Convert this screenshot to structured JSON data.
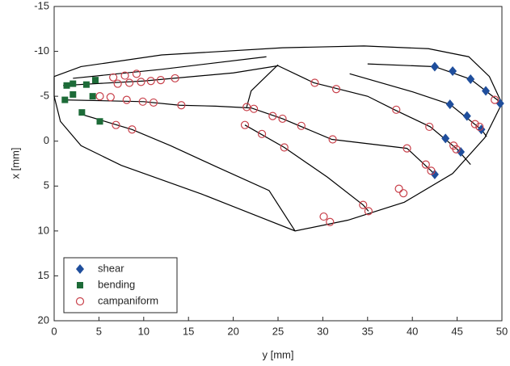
{
  "chart_data": {
    "type": "scatter",
    "xlabel": "y [mm]",
    "ylabel": "x [mm]",
    "xlim": [
      0,
      50
    ],
    "xticks": [
      0,
      5,
      10,
      15,
      20,
      25,
      30,
      35,
      40,
      45,
      50
    ],
    "ylim": [
      -15,
      20
    ],
    "yticks": [
      -15,
      -10,
      -5,
      0,
      5,
      10,
      15,
      20
    ],
    "y_inverted": true,
    "legend": "lower left",
    "series": [
      {
        "name": "shear",
        "color": "#1f4e9c",
        "marker": "diamond",
        "x": [
          42.5,
          44.5,
          46.5,
          48.2,
          49.8,
          44.2,
          46.1,
          47.7,
          43.7,
          45.4,
          42.5
        ],
        "values": [
          -8.3,
          -7.8,
          -6.9,
          -5.6,
          -4.2,
          -4.1,
          -2.8,
          -1.3,
          -0.3,
          1.2,
          3.7
        ]
      },
      {
        "name": "bending",
        "color": "#1d6b38",
        "marker": "square",
        "x": [
          1.4,
          2.1,
          3.6,
          4.6,
          1.2,
          2.1,
          3.1,
          4.3,
          5.1
        ],
        "values": [
          -6.2,
          -6.4,
          -6.3,
          -6.8,
          -4.6,
          -5.2,
          -3.2,
          -5.0,
          -2.2
        ]
      },
      {
        "name": "campaniform",
        "color": "#c8404a",
        "marker": "circle",
        "x": [
          6.6,
          7.9,
          9.2,
          7.1,
          8.4,
          9.7,
          10.8,
          11.9,
          13.5,
          5.1,
          6.3,
          8.1,
          9.9,
          11.1,
          14.2,
          6.9,
          8.7,
          21.5,
          22.3,
          21.3,
          23.2,
          24.4,
          25.5,
          25.7,
          27.6,
          31.1,
          29.1,
          31.5,
          38.2,
          41.9,
          39.4,
          41.5,
          42.1,
          44.6,
          44.9,
          47.0,
          47.5,
          49.2,
          38.5,
          39.0,
          34.5,
          35.1,
          30.1,
          30.8
        ],
        "values": [
          -7.1,
          -7.3,
          -7.5,
          -6.4,
          -6.5,
          -6.6,
          -6.7,
          -6.8,
          -7.0,
          -5.0,
          -4.9,
          -4.6,
          -4.4,
          -4.3,
          -4.0,
          -1.8,
          -1.3,
          -3.8,
          -3.6,
          -1.8,
          -0.8,
          -2.8,
          -2.5,
          0.7,
          -1.7,
          -0.2,
          -6.5,
          -5.8,
          -3.5,
          -1.6,
          0.8,
          2.6,
          3.3,
          0.5,
          0.9,
          -1.9,
          -1.6,
          -4.6,
          5.3,
          5.8,
          7.1,
          7.8,
          8.4,
          9.0
        ]
      }
    ],
    "lines": [
      {
        "color": "#000000",
        "x": [
          0,
          3,
          12,
          25.5,
          34.6,
          41.8,
          46.3,
          48.6,
          50,
          48.1,
          44.5,
          39.1,
          32.8,
          26.9,
          16.5,
          7.5,
          3,
          0.7,
          0,
          0
        ],
        "values": [
          -7.2,
          -8.3,
          -9.6,
          -10.4,
          -10.6,
          -10.3,
          -9.4,
          -7.2,
          -4.2,
          -0.4,
          3.6,
          6.8,
          8.8,
          10.0,
          5.9,
          2.7,
          0.5,
          -2.2,
          -5.0,
          -7.2
        ]
      },
      {
        "color": "#000000",
        "x": [
          2.1,
          12,
          23.7
        ],
        "values": [
          -7.0,
          -8.0,
          -9.4
        ]
      },
      {
        "color": "#000000",
        "x": [
          1,
          10,
          20,
          25,
          29,
          35,
          38,
          42,
          45,
          46.5
        ],
        "values": [
          -6.2,
          -6.7,
          -7.6,
          -8.4,
          -6.5,
          -5.0,
          -3.5,
          -1.6,
          0.9,
          2.6
        ]
      },
      {
        "color": "#000000",
        "x": [
          35,
          42.5,
          46.5,
          50
        ],
        "values": [
          -8.6,
          -8.3,
          -6.9,
          -4.2
        ]
      },
      {
        "color": "#000000",
        "x": [
          1,
          10,
          14,
          18,
          22,
          25.5,
          31,
          39.4,
          42.1,
          42.5
        ],
        "values": [
          -4.6,
          -4.4,
          -4.0,
          -3.9,
          -3.7,
          -2.5,
          -0.2,
          0.8,
          3.3,
          3.7
        ]
      },
      {
        "color": "#000000",
        "x": [
          33,
          40,
          44.2,
          47.7,
          48.3
        ],
        "values": [
          -7.5,
          -5.5,
          -4.1,
          -1.3,
          -0.5
        ]
      },
      {
        "color": "#000000",
        "x": [
          21.3,
          25.7,
          30.5,
          34.5,
          35.1
        ],
        "values": [
          -1.8,
          0.7,
          4.0,
          7.1,
          7.8
        ]
      },
      {
        "color": "#000000",
        "x": [
          3,
          8.7,
          13,
          18,
          24,
          26.9
        ],
        "values": [
          -3.0,
          -1.3,
          0.5,
          2.8,
          5.5,
          10.0
        ]
      },
      {
        "color": "#000000",
        "x": [
          25,
          22,
          21.5
        ],
        "values": [
          -8.5,
          -5.6,
          -3.8
        ]
      }
    ]
  }
}
